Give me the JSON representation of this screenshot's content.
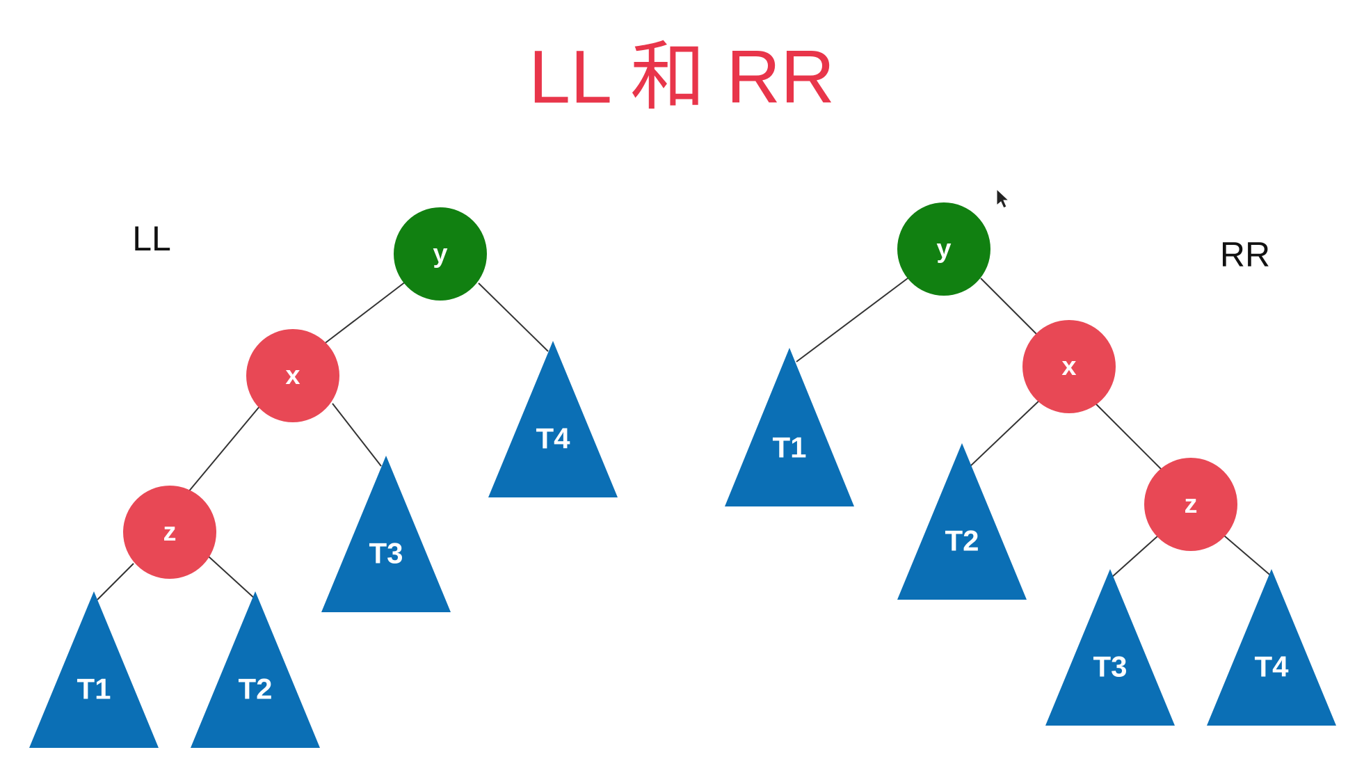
{
  "title": "LL 和 RR",
  "colors": {
    "title": "#e8354a",
    "root_node": "#118011",
    "child_node": "#e84855",
    "subtree": "#0b6fb5",
    "edge": "#333333",
    "label_text": "#111111"
  },
  "ll": {
    "label": "LL",
    "nodes": {
      "y": "y",
      "x": "x",
      "z": "z"
    },
    "subtrees": {
      "t1": "T1",
      "t2": "T2",
      "t3": "T3",
      "t4": "T4"
    }
  },
  "rr": {
    "label": "RR",
    "nodes": {
      "y": "y",
      "x": "x",
      "z": "z"
    },
    "subtrees": {
      "t1": "T1",
      "t2": "T2",
      "t3": "T3",
      "t4": "T4"
    }
  }
}
